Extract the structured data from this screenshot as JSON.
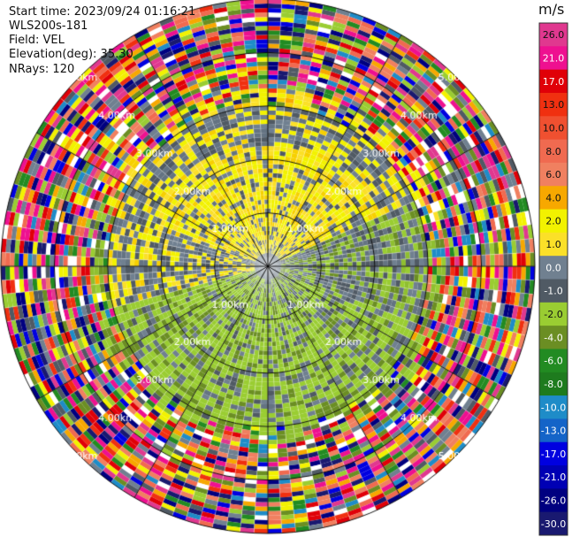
{
  "header": {
    "start_time": "Start time: 2023/09/24 01:16:21",
    "instrument": "WLS200s-181",
    "field": "Field: VEL",
    "elevation": "Elevation(deg): 35.30",
    "nrays": "NRays: 120"
  },
  "chart_data": {
    "type": "heatmap",
    "projection": "polar PPI",
    "field": "VEL",
    "units": "m/s",
    "nrays": 120,
    "range_rings_km": [
      1.0,
      2.0,
      3.0,
      4.0,
      5.0
    ],
    "ring_labels": [
      "1.00km",
      "2.00km",
      "3.00km",
      "4.00km",
      "5.00km"
    ],
    "spoke_angles_deg": [
      0,
      30,
      60,
      90,
      120,
      150,
      180,
      210,
      240,
      270,
      300,
      330
    ],
    "max_range_km": 5.0,
    "colorbar": {
      "label": "m/s",
      "ticks": [
        "26.0",
        "21.0",
        "17.0",
        "13.0",
        "10.0",
        "8.0",
        "6.0",
        "4.0",
        "2.0",
        "1.0",
        "0.0",
        "-1.0",
        "-2.0",
        "-4.0",
        "-6.0",
        "-8.0",
        "-10.0",
        "-13.0",
        "-17.0",
        "-21.0",
        "-26.0",
        "-30.0"
      ],
      "colors": [
        "#e0388f",
        "#ee1090",
        "#e00008",
        "#f03010",
        "#f05030",
        "#f06a50",
        "#f08060",
        "#f7a800",
        "#f2f200",
        "#fbe028",
        "#708090",
        "#505a64",
        "#9acd32",
        "#6b8e23",
        "#228b22",
        "#1e7b1e",
        "#1e8cc8",
        "#1464c8",
        "#0000e0",
        "#0000b4",
        "#000080",
        "#191970"
      ]
    },
    "regions": [
      {
        "from_deg": -70,
        "to_deg": 65,
        "r_max_km": 3.0,
        "values": [
          2.0,
          1.0,
          0.0
        ]
      },
      {
        "from_deg": 65,
        "to_deg": 285,
        "r_max_km": 3.0,
        "values": [
          -2.0,
          -4.0,
          0.0,
          -1.0
        ]
      },
      {
        "from_deg": 0,
        "to_deg": 360,
        "r_min_km": 3.0,
        "r_max_km": 5.0,
        "values": [
          "noise"
        ]
      }
    ]
  }
}
